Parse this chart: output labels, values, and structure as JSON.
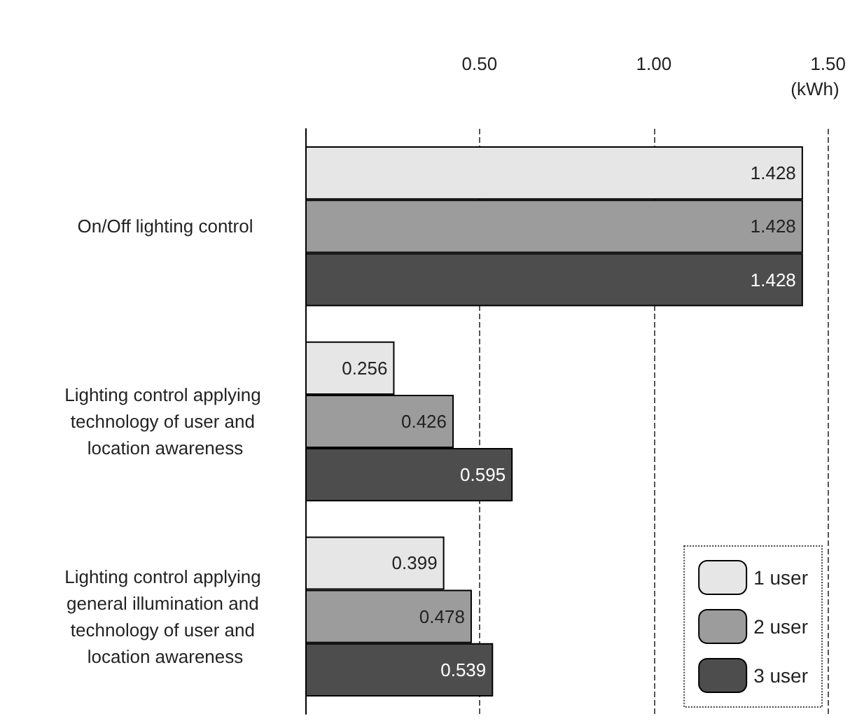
{
  "chart_data": {
    "type": "bar",
    "orientation": "horizontal",
    "xlabel": "(kWh)",
    "categories": [
      "On/Off lighting control",
      "Lighting control applying technology of user and location awareness",
      "Lighting control applying general illumination and technology of user and location awareness"
    ],
    "series": [
      {
        "name": "1 user",
        "color": "#e6e6e6",
        "values": [
          1.428,
          0.256,
          0.399
        ]
      },
      {
        "name": "2 user",
        "color": "#9c9c9c",
        "values": [
          1.428,
          0.426,
          0.478
        ]
      },
      {
        "name": "3 user",
        "color": "#4d4d4d",
        "values": [
          1.428,
          0.595,
          0.539
        ]
      }
    ],
    "xlim": [
      0,
      1.5
    ],
    "xticks": [
      {
        "value": 0.5,
        "label": "0.50"
      },
      {
        "value": 1.0,
        "label": "1.00"
      },
      {
        "value": 1.5,
        "label": "1.50"
      }
    ],
    "grid": "x",
    "legend": "bottom right",
    "data_labels": true
  }
}
